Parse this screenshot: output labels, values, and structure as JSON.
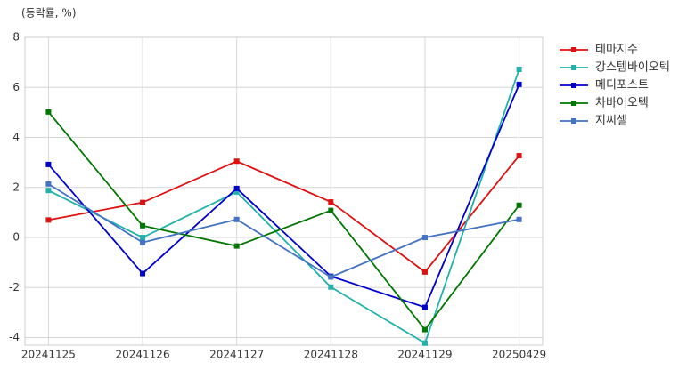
{
  "chart_data": {
    "type": "line",
    "y_label": "(등락률, %)",
    "categories": [
      "20241125",
      "20241126",
      "20241127",
      "20241128",
      "20241129",
      "20250429"
    ],
    "series": [
      {
        "name": "테마지수",
        "color": "#e01010",
        "values": [
          0.7,
          1.4,
          3.05,
          1.42,
          -1.38,
          3.27
        ]
      },
      {
        "name": "강스템바이오텍",
        "color": "#20b2aa",
        "values": [
          1.88,
          0.0,
          1.82,
          -1.98,
          -4.22,
          6.72
        ]
      },
      {
        "name": "메디포스트",
        "color": "#0000cc",
        "values": [
          2.92,
          -1.44,
          1.96,
          -1.55,
          -2.79,
          6.12
        ]
      },
      {
        "name": "차바이오텍",
        "color": "#007700",
        "values": [
          5.02,
          0.47,
          -0.34,
          1.08,
          -3.68,
          1.29
        ]
      },
      {
        "name": "지씨셀",
        "color": "#4472c4",
        "values": [
          2.14,
          -0.2,
          0.72,
          -1.58,
          0.0,
          0.72
        ]
      }
    ],
    "ylim": [
      -4.3,
      8
    ],
    "yticks": [
      -4,
      -2,
      0,
      2,
      4,
      6,
      8
    ],
    "grid": true,
    "legend": "outside-right"
  }
}
